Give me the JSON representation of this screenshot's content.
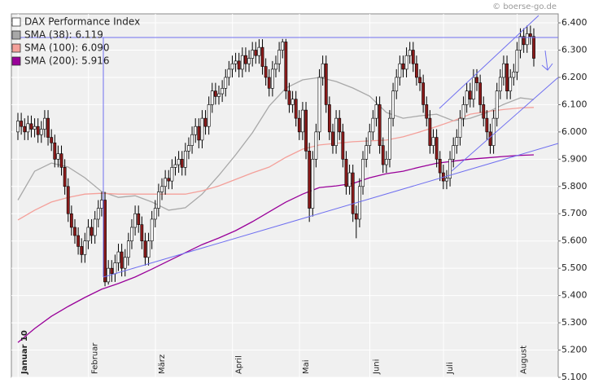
{
  "chart_data": {
    "type": "candlestick",
    "source": "© boerse-go.de",
    "name": "DAX Performance Index",
    "up_color": "#ffffff",
    "down_color": "#8b1a1a",
    "legend_color": "#ffffff",
    "legend": "top-left",
    "grid": true,
    "ylim": [
      5100,
      6433
    ],
    "yticks": [
      {
        "value": 5100,
        "label": "5.100"
      },
      {
        "value": 5200,
        "label": "5.200"
      },
      {
        "value": 5300,
        "label": "5.300"
      },
      {
        "value": 5400,
        "label": "5.400"
      },
      {
        "value": 5500,
        "label": "5.500"
      },
      {
        "value": 5600,
        "label": "5.600"
      },
      {
        "value": 5700,
        "label": "5.700"
      },
      {
        "value": 5800,
        "label": "5.800"
      },
      {
        "value": 5900,
        "label": "5.900"
      },
      {
        "value": 6000,
        "label": "6.000"
      },
      {
        "value": 6100,
        "label": "6.100"
      },
      {
        "value": 6200,
        "label": "6.200"
      },
      {
        "value": 6300,
        "label": "6.300"
      },
      {
        "value": 6400,
        "label": "6.400"
      }
    ],
    "categories": [
      null,
      null,
      "Januar 10",
      null,
      null,
      null,
      null,
      null,
      null,
      null,
      null,
      null,
      null,
      null,
      null,
      null,
      null,
      null,
      null,
      null,
      null,
      null,
      null,
      "Februar",
      null,
      null,
      null,
      null,
      null,
      null,
      null,
      null,
      null,
      null,
      null,
      null,
      null,
      null,
      null,
      null,
      null,
      null,
      null,
      "März",
      null,
      null,
      null,
      null,
      null,
      null,
      null,
      null,
      null,
      null,
      null,
      null,
      null,
      null,
      null,
      null,
      null,
      null,
      null,
      null,
      null,
      null,
      "April",
      null,
      null,
      null,
      null,
      null,
      null,
      null,
      null,
      null,
      null,
      null,
      null,
      null,
      null,
      null,
      null,
      null,
      null,
      null,
      "Mai",
      null,
      null,
      null,
      null,
      null,
      null,
      null,
      null,
      null,
      null,
      null,
      null,
      null,
      null,
      null,
      null,
      null,
      null,
      null,
      null,
      "Juni",
      null,
      null,
      null,
      null,
      null,
      null,
      null,
      null,
      null,
      null,
      null,
      null,
      null,
      null,
      null,
      null,
      null,
      null,
      null,
      null,
      null,
      "Juli",
      null,
      null,
      null,
      null,
      null,
      null,
      null,
      null,
      null,
      null,
      null,
      null,
      null,
      null,
      null,
      null,
      null,
      null,
      null,
      null,
      null,
      "August",
      null,
      null,
      null
    ],
    "open": [
      6000,
      6040,
      6020,
      6000,
      6030,
      6010,
      6020,
      5990,
      6010,
      6050,
      5980,
      5960,
      5900,
      5920,
      5870,
      5800,
      5700,
      5650,
      5620,
      5580,
      5550,
      5600,
      5650,
      5620,
      5680,
      5720,
      5750,
      5450,
      5500,
      5480,
      5520,
      5560,
      5500,
      5540,
      5600,
      5650,
      5700,
      5660,
      5600,
      5540,
      5600,
      5680,
      5720,
      5780,
      5800,
      5830,
      5820,
      5870,
      5880,
      5900,
      5870,
      5930,
      5950,
      5990,
      6020,
      5970,
      6050,
      6020,
      6100,
      6150,
      6130,
      6140,
      6160,
      6200,
      6230,
      6250,
      6260,
      6230,
      6280,
      6250,
      6270,
      6300,
      6280,
      6310,
      6240,
      6200,
      6160,
      6230,
      6250,
      6300,
      6330,
      6150,
      6100,
      6120,
      6050,
      6000,
      6080,
      5930,
      5720,
      5900,
      6000,
      6200,
      6250,
      6100,
      6000,
      5950,
      6050,
      6000,
      5900,
      5800,
      5850,
      5700,
      5680,
      5800,
      5900,
      5950,
      6000,
      6050,
      6100,
      5950,
      5880,
      5900,
      6050,
      6150,
      6200,
      6250,
      6230,
      6280,
      6300,
      6250,
      6200,
      6180,
      6100,
      6050,
      5950,
      5980,
      5900,
      5850,
      5820,
      5830,
      5900,
      5950,
      5980,
      6050,
      6100,
      6150,
      6120,
      6200,
      6180,
      6100,
      6050,
      6000,
      5950,
      6050,
      6150,
      6200,
      6250,
      6150,
      6200,
      6220,
      6300,
      6350,
      6320,
      6360,
      6350
    ],
    "high": [
      6070,
      6070,
      6050,
      6060,
      6060,
      6050,
      6050,
      6040,
      6080,
      6080,
      6010,
      5990,
      5950,
      5950,
      5900,
      5830,
      5730,
      5680,
      5650,
      5610,
      5630,
      5680,
      5680,
      5710,
      5750,
      5780,
      5780,
      5530,
      5530,
      5550,
      5590,
      5590,
      5570,
      5630,
      5680,
      5730,
      5730,
      5690,
      5630,
      5630,
      5710,
      5750,
      5810,
      5830,
      5860,
      5860,
      5900,
      5910,
      5930,
      5930,
      5960,
      5980,
      6020,
      6050,
      6050,
      6080,
      6080,
      6130,
      6180,
      6180,
      6170,
      6190,
      6230,
      6260,
      6280,
      6290,
      6290,
      6310,
      6310,
      6300,
      6330,
      6330,
      6340,
      6340,
      6270,
      6230,
      6260,
      6280,
      6330,
      6341,
      6341,
      6180,
      6150,
      6150,
      6080,
      6110,
      6110,
      5960,
      5930,
      6030,
      6230,
      6280,
      6280,
      6130,
      6030,
      6080,
      6080,
      6030,
      5930,
      5880,
      5880,
      5730,
      5830,
      5930,
      5980,
      6030,
      6080,
      6130,
      6130,
      5980,
      5930,
      6080,
      6180,
      6230,
      6280,
      6280,
      6310,
      6330,
      6330,
      6280,
      6230,
      6210,
      6130,
      6080,
      6010,
      6010,
      5930,
      5880,
      5860,
      5930,
      5980,
      6010,
      6080,
      6130,
      6180,
      6180,
      6230,
      6230,
      6210,
      6130,
      6080,
      6030,
      6080,
      6180,
      6230,
      6280,
      6280,
      6230,
      6250,
      6330,
      6380,
      6380,
      6390,
      6390,
      6380
    ],
    "low": [
      5970,
      5990,
      5970,
      5970,
      5980,
      5980,
      5960,
      5960,
      5980,
      5950,
      5930,
      5870,
      5870,
      5840,
      5770,
      5670,
      5620,
      5590,
      5550,
      5520,
      5520,
      5570,
      5590,
      5590,
      5650,
      5690,
      5434,
      5440,
      5450,
      5450,
      5490,
      5470,
      5470,
      5510,
      5570,
      5620,
      5630,
      5570,
      5510,
      5510,
      5570,
      5650,
      5690,
      5750,
      5770,
      5790,
      5790,
      5840,
      5850,
      5840,
      5840,
      5900,
      5920,
      5960,
      5940,
      5940,
      5990,
      5990,
      6070,
      6100,
      6100,
      6110,
      6130,
      6170,
      6200,
      6220,
      6200,
      6200,
      6220,
      6220,
      6240,
      6250,
      6250,
      6210,
      6170,
      6130,
      6130,
      6200,
      6220,
      6270,
      6120,
      6070,
      6070,
      6020,
      5970,
      5970,
      5900,
      5670,
      5690,
      5870,
      5970,
      6170,
      6070,
      5970,
      5920,
      5920,
      5970,
      5870,
      5770,
      5770,
      5670,
      5610,
      5650,
      5770,
      5870,
      5920,
      5970,
      6020,
      5920,
      5850,
      5850,
      5870,
      6020,
      6120,
      6170,
      6200,
      6200,
      6250,
      6220,
      6170,
      6150,
      6070,
      6020,
      5920,
      5920,
      5870,
      5820,
      5790,
      5790,
      5800,
      5870,
      5920,
      5950,
      6020,
      6070,
      6090,
      6090,
      6150,
      6070,
      6020,
      5970,
      5920,
      5920,
      6020,
      6120,
      6170,
      6120,
      6120,
      6170,
      6190,
      6270,
      6290,
      6290,
      6320,
      6240
    ],
    "close": [
      6040,
      6020,
      6000,
      6030,
      6010,
      6020,
      5990,
      6010,
      6050,
      5980,
      5960,
      5900,
      5920,
      5870,
      5800,
      5700,
      5650,
      5620,
      5580,
      5550,
      5600,
      5650,
      5620,
      5680,
      5720,
      5750,
      5450,
      5500,
      5480,
      5520,
      5560,
      5500,
      5540,
      5600,
      5650,
      5700,
      5660,
      5600,
      5540,
      5600,
      5680,
      5720,
      5780,
      5800,
      5830,
      5820,
      5870,
      5880,
      5900,
      5870,
      5930,
      5950,
      5990,
      6020,
      5970,
      6050,
      6020,
      6100,
      6150,
      6130,
      6140,
      6160,
      6200,
      6230,
      6250,
      6260,
      6230,
      6280,
      6250,
      6270,
      6300,
      6280,
      6310,
      6240,
      6200,
      6160,
      6230,
      6250,
      6300,
      6330,
      6150,
      6100,
      6120,
      6050,
      6000,
      6080,
      5930,
      5720,
      5900,
      6000,
      6200,
      6250,
      6100,
      6000,
      5950,
      6050,
      6000,
      5900,
      5800,
      5850,
      5700,
      5680,
      5800,
      5900,
      5950,
      6000,
      6050,
      6100,
      5950,
      5880,
      5900,
      6050,
      6150,
      6200,
      6250,
      6230,
      6280,
      6300,
      6250,
      6200,
      6180,
      6100,
      6050,
      5950,
      5980,
      5900,
      5850,
      5820,
      5830,
      5900,
      5950,
      5980,
      6050,
      6100,
      6150,
      6120,
      6200,
      6180,
      6100,
      6050,
      6000,
      5950,
      6050,
      6150,
      6200,
      6250,
      6150,
      6200,
      6220,
      6300,
      6350,
      6320,
      6360,
      6350,
      6270
    ],
    "series": [
      {
        "name": "SMA (38): 6.119",
        "color": "#a8a8a8",
        "x": [
          0,
          5,
          10,
          15,
          20,
          25,
          30,
          35,
          40,
          45,
          50,
          55,
          60,
          65,
          70,
          75,
          80,
          85,
          90,
          95,
          100,
          105,
          110,
          115,
          120,
          125,
          130,
          135,
          140,
          145,
          150,
          154
        ],
        "values": [
          5750,
          5856,
          5886,
          5871,
          5832,
          5781,
          5760,
          5766,
          5743,
          5713,
          5722,
          5772,
          5841,
          5916,
          5997,
          6095,
          6161,
          6191,
          6200,
          6185,
          6161,
          6131,
          6071,
          6050,
          6059,
          6065,
          6041,
          6050,
          6071,
          6101,
          6125,
          6119
        ]
      },
      {
        "name": "SMA (100): 6.090",
        "color": "#f4a09a",
        "x": [
          0,
          5,
          10,
          15,
          20,
          25,
          30,
          35,
          40,
          45,
          50,
          55,
          60,
          65,
          70,
          75,
          80,
          85,
          90,
          95,
          100,
          105,
          110,
          115,
          120,
          125,
          130,
          135,
          140,
          145,
          150,
          154
        ],
        "values": [
          5677,
          5713,
          5743,
          5760,
          5772,
          5775,
          5772,
          5772,
          5772,
          5772,
          5772,
          5784,
          5802,
          5826,
          5850,
          5871,
          5907,
          5937,
          5952,
          5958,
          5964,
          5967,
          5970,
          5982,
          6000,
          6020,
          6041,
          6065,
          6075,
          6082,
          6088,
          6090
        ]
      },
      {
        "name": "SMA (200): 5.916",
        "color": "#990099",
        "x": [
          0,
          5,
          10,
          15,
          20,
          25,
          30,
          35,
          40,
          45,
          50,
          55,
          60,
          65,
          70,
          75,
          80,
          85,
          90,
          95,
          100,
          105,
          110,
          115,
          120,
          125,
          130,
          135,
          140,
          145,
          150,
          154
        ],
        "values": [
          5228,
          5279,
          5324,
          5360,
          5393,
          5423,
          5444,
          5468,
          5497,
          5527,
          5557,
          5587,
          5611,
          5638,
          5671,
          5707,
          5743,
          5772,
          5796,
          5802,
          5811,
          5832,
          5847,
          5856,
          5871,
          5885,
          5893,
          5900,
          5905,
          5910,
          5914,
          5916
        ]
      }
    ]
  }
}
